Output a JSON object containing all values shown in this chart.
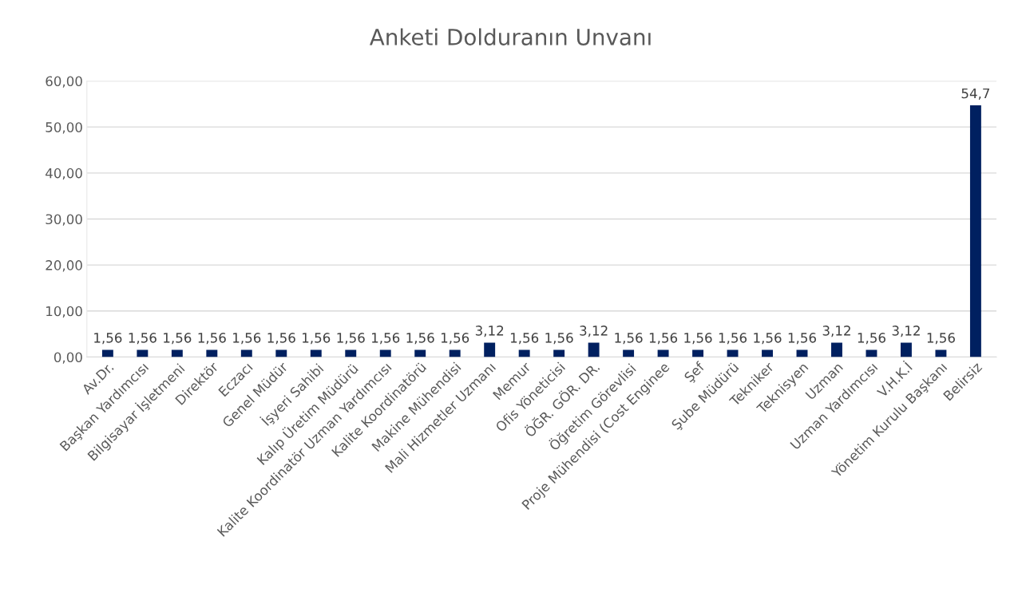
{
  "chart_data": {
    "type": "bar",
    "title": "Anketi Dolduranın Unvanı",
    "categories": [
      "Av.Dr.",
      "Başkan Yardımcısı",
      "Bilgisayar İşletmeni",
      "Direktör",
      "Eczacı",
      "Genel Müdür",
      "İşyeri Sahibi",
      "Kalıp Üretim Müdürü",
      "Kalite Koordinatör Uzman Yardımcısı",
      "Kalite Koordinatörü",
      "Makine Mühendisi",
      "Mali Hizmetler Uzmanı",
      "Memur",
      "Ofis Yöneticisi",
      "ÖĞR. GÖR. DR.",
      "Öğretim Görevlisi",
      "Proje Mühendisi (Cost Enginee",
      "Şef",
      "Şube Müdürü",
      "Tekniker",
      "Teknisyen",
      "Uzman",
      "Uzman Yardımcısı",
      "V.H.K.İ",
      "Yönetim Kurulu Başkanı",
      "Belirsiz"
    ],
    "values": [
      1.56,
      1.56,
      1.56,
      1.56,
      1.56,
      1.56,
      1.56,
      1.56,
      1.56,
      1.56,
      1.56,
      3.12,
      1.56,
      1.56,
      3.12,
      1.56,
      1.56,
      1.56,
      1.56,
      1.56,
      1.56,
      3.12,
      1.56,
      3.12,
      1.56,
      54.7
    ],
    "value_labels": [
      "1,56",
      "1,56",
      "1,56",
      "1,56",
      "1,56",
      "1,56",
      "1,56",
      "1,56",
      "1,56",
      "1,56",
      "1,56",
      "3,12",
      "1,56",
      "1,56",
      "3,12",
      "1,56",
      "1,56",
      "1,56",
      "1,56",
      "1,56",
      "1,56",
      "3,12",
      "1,56",
      "3,12",
      "1,56",
      "54,7"
    ],
    "color": "#002060",
    "ylim": [
      0,
      60
    ],
    "yticks": [
      {
        "value": 0,
        "label": "0,00"
      },
      {
        "value": 10,
        "label": "10,00"
      },
      {
        "value": 20,
        "label": "20,00"
      },
      {
        "value": 30,
        "label": "30,00"
      },
      {
        "value": 40,
        "label": "40,00"
      },
      {
        "value": 50,
        "label": "50,00"
      },
      {
        "value": 60,
        "label": "60,00"
      }
    ],
    "grid": "y"
  }
}
